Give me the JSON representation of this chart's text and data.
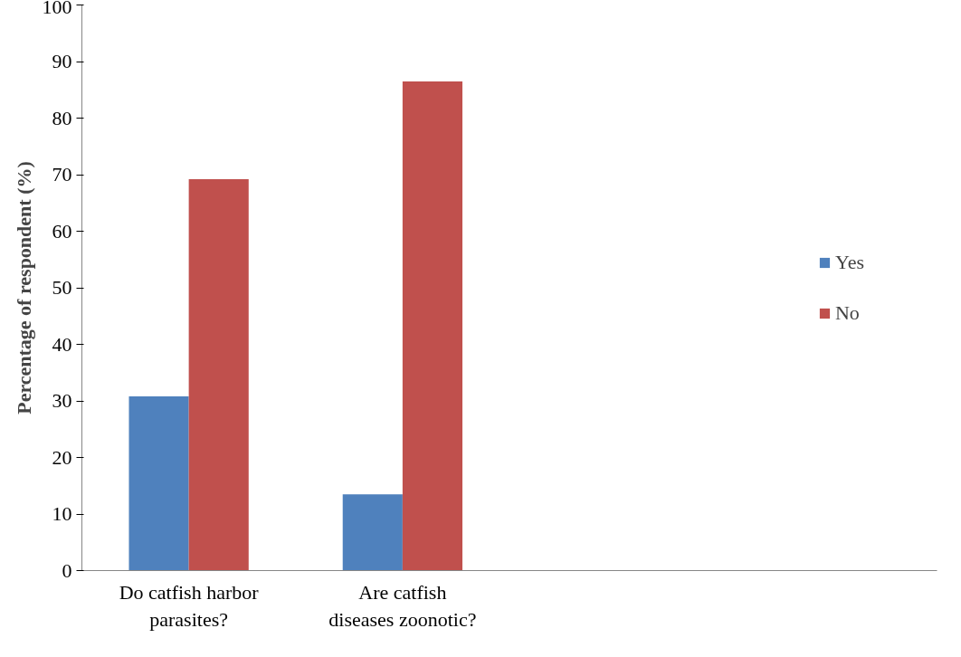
{
  "chart_data": {
    "type": "bar",
    "ylabel": "Percentage of respondent (%)",
    "categories": [
      "Do catfish harbor parasites?",
      "Are catfish diseases zoonotic?",
      null,
      null
    ],
    "series": [
      {
        "name": "Yes",
        "color": "#4f81bd",
        "values": [
          30.8,
          13.5,
          null,
          null
        ]
      },
      {
        "name": "No",
        "color": "#c0504d",
        "values": [
          69.2,
          86.5,
          null,
          null
        ]
      }
    ],
    "ylim": [
      0,
      100
    ],
    "yticks": [
      0,
      10,
      20,
      30,
      40,
      50,
      60,
      70,
      80,
      90,
      100
    ],
    "grid": false,
    "legend": "right"
  }
}
